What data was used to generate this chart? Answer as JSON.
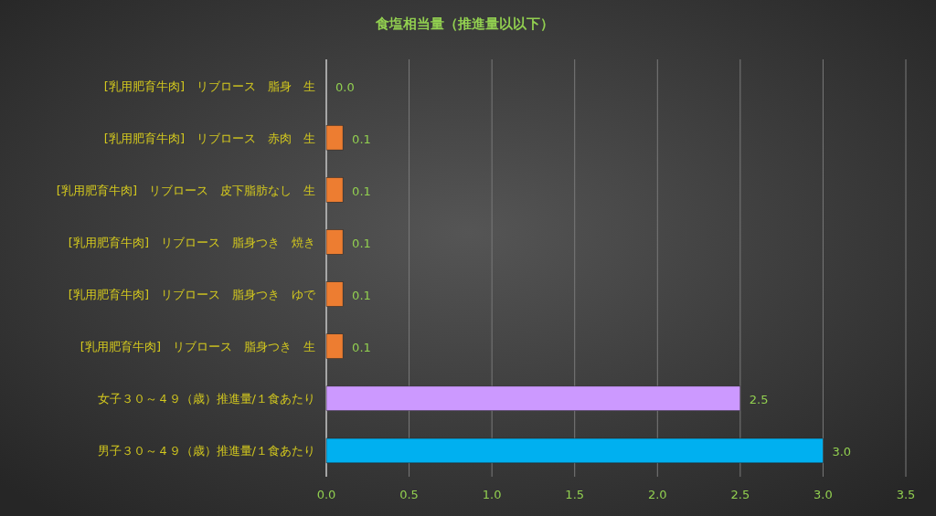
{
  "chart_data": {
    "type": "bar",
    "orientation": "horizontal",
    "title": "食塩相当量（推進量以以下）",
    "categories": [
      "[乳用肥育牛肉]　リブロース　脂身　生",
      "[乳用肥育牛肉]　リブロース　赤肉　生",
      "[乳用肥育牛肉]　リブロース　皮下脂肪なし　生",
      "[乳用肥育牛肉]　リブロース　脂身つき　焼き",
      "[乳用肥育牛肉]　リブロース　脂身つき　ゆで",
      "[乳用肥育牛肉]　リブロース　脂身つき　生",
      "女子３０～４９（歳）推進量/１食あたり",
      "男子３０～４９（歳）推進量/１食あたり"
    ],
    "values": [
      0.0,
      0.1,
      0.1,
      0.1,
      0.1,
      0.1,
      2.5,
      3.0
    ],
    "colors": [
      "#ed7d31",
      "#ed7d31",
      "#ed7d31",
      "#ed7d31",
      "#ed7d31",
      "#ed7d31",
      "#cc99ff",
      "#00b0f0"
    ],
    "value_labels": [
      "0.0",
      "0.1",
      "0.1",
      "0.1",
      "0.1",
      "0.1",
      "2.5",
      "3.0"
    ],
    "xlim": [
      0,
      3.5
    ],
    "xticks": [
      {
        "value": 0,
        "label": "0.0"
      },
      {
        "value": 0.5,
        "label": "0.5"
      },
      {
        "value": 1,
        "label": "1.0"
      },
      {
        "value": 1.5,
        "label": "1.5"
      },
      {
        "value": 2,
        "label": "2.0"
      },
      {
        "value": 2.5,
        "label": "2.5"
      },
      {
        "value": 3,
        "label": "3.0"
      },
      {
        "value": 3.5,
        "label": "3.5"
      }
    ],
    "grid": "x"
  }
}
